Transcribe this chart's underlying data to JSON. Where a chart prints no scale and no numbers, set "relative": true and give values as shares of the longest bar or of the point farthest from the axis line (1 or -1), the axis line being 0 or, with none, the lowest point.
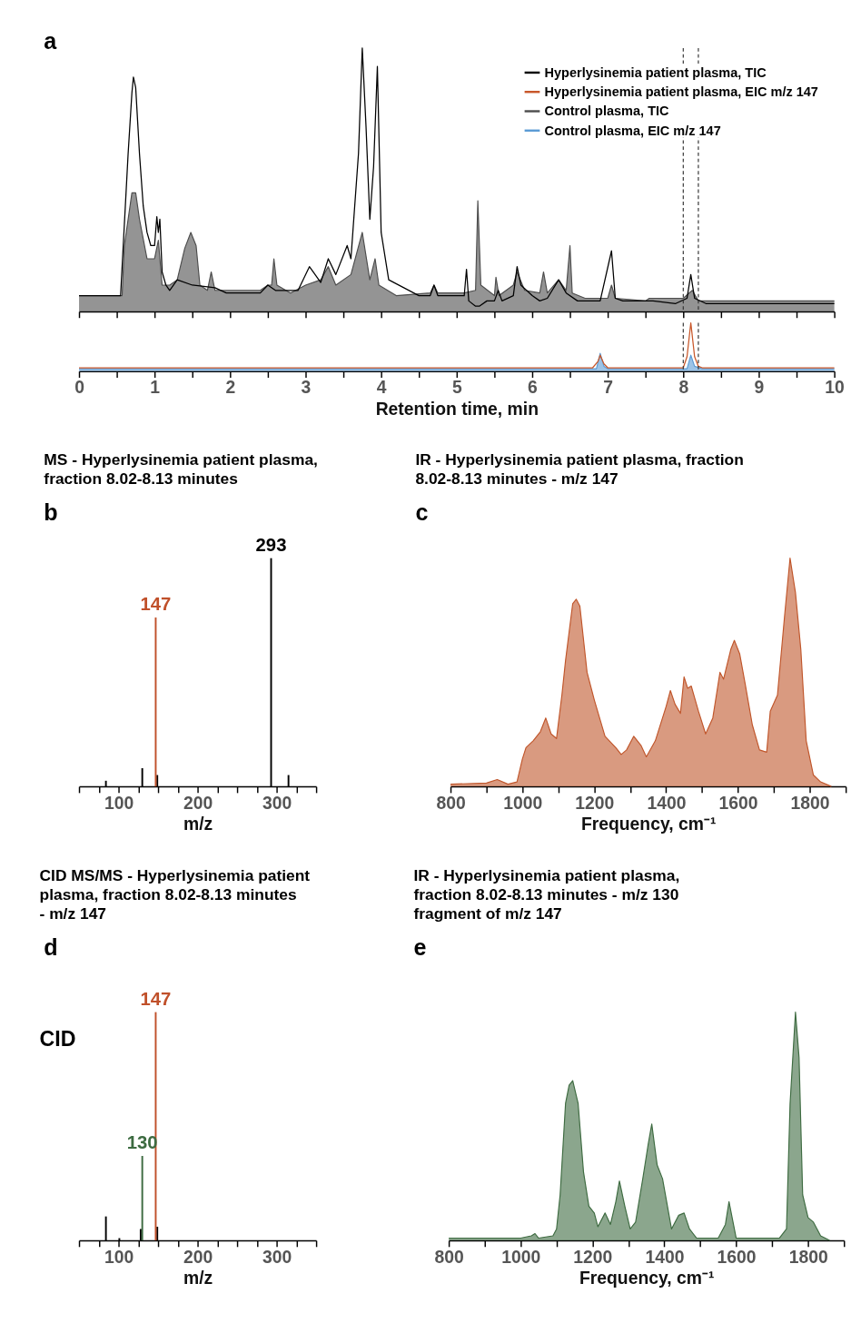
{
  "chart_data": [
    {
      "type": "line",
      "relative": true,
      "xlim": [
        0,
        10
      ],
      "xticks": [
        0,
        {
          "value": 0.5,
          "label": null
        },
        1,
        {
          "value": 1.5,
          "label": null
        },
        2,
        {
          "value": 2.5,
          "label": null
        },
        3,
        {
          "value": 3.5,
          "label": null
        },
        4,
        {
          "value": 4.5,
          "label": null
        },
        5,
        {
          "value": 5.5,
          "label": null
        },
        6,
        {
          "value": 6.5,
          "label": null
        },
        7,
        {
          "value": 7.5,
          "label": null
        },
        8,
        {
          "value": 8.5,
          "label": null
        },
        9,
        {
          "value": 9.5,
          "label": null
        },
        10
      ],
      "tick_labels": false,
      "legend": "top right",
      "annotations": [
        "a"
      ],
      "ref_lines": [
        {
          "axis": "x",
          "value": 8.0,
          "line_style": "dashed",
          "color": "#333333"
        },
        {
          "axis": "x",
          "value": 8.2,
          "line_style": "dashed",
          "color": "#333333"
        }
      ],
      "series": [
        {
          "name": "Hyperlysinemia patient plasma, TIC",
          "color": "#000000",
          "x": [
            0,
            0.55,
            0.6,
            0.65,
            0.7,
            0.72,
            0.75,
            0.8,
            0.85,
            0.9,
            0.95,
            1.0,
            1.03,
            1.05,
            1.07,
            1.1,
            1.15,
            1.2,
            1.3,
            1.5,
            1.8,
            1.95,
            2.4,
            2.5,
            2.6,
            2.9,
            3.05,
            3.1,
            3.2,
            3.3,
            3.4,
            3.55,
            3.6,
            3.7,
            3.75,
            3.8,
            3.85,
            3.9,
            3.95,
            4.0,
            4.1,
            4.3,
            4.5,
            4.65,
            4.7,
            4.75,
            5.0,
            5.1,
            5.13,
            5.16,
            5.25,
            5.3,
            5.4,
            5.5,
            5.55,
            5.6,
            5.75,
            5.8,
            5.85,
            6.0,
            6.1,
            6.2,
            6.35,
            6.45,
            6.6,
            6.8,
            6.9,
            7.05,
            7.1,
            7.2,
            7.6,
            7.9,
            8.05,
            8.1,
            8.15,
            8.3,
            9.0,
            10.0
          ],
          "values": [
            0.06,
            0.06,
            0.33,
            0.6,
            0.83,
            0.89,
            0.85,
            0.6,
            0.4,
            0.3,
            0.25,
            0.25,
            0.36,
            0.3,
            0.35,
            0.15,
            0.1,
            0.08,
            0.12,
            0.1,
            0.09,
            0.07,
            0.07,
            0.1,
            0.08,
            0.08,
            0.17,
            0.15,
            0.11,
            0.2,
            0.14,
            0.25,
            0.2,
            0.6,
            1.0,
            0.7,
            0.35,
            0.55,
            0.93,
            0.3,
            0.12,
            0.09,
            0.06,
            0.06,
            0.1,
            0.06,
            0.06,
            0.06,
            0.16,
            0.04,
            0.02,
            0.02,
            0.04,
            0.04,
            0.08,
            0.04,
            0.06,
            0.17,
            0.1,
            0.06,
            0.04,
            0.05,
            0.12,
            0.07,
            0.04,
            0.04,
            0.04,
            0.23,
            0.05,
            0.04,
            0.04,
            0.03,
            0.05,
            0.14,
            0.05,
            0.03,
            0.03,
            0.03
          ]
        },
        {
          "name": "Control plasma, TIC",
          "color": "#4d4d4d",
          "type": "area",
          "x": [
            0,
            0.57,
            0.6,
            0.7,
            0.75,
            0.8,
            0.9,
            1.0,
            1.05,
            1.1,
            1.2,
            1.3,
            1.4,
            1.48,
            1.55,
            1.6,
            1.7,
            1.75,
            1.8,
            2.0,
            2.4,
            2.5,
            2.55,
            2.58,
            2.62,
            2.8,
            3.0,
            3.2,
            3.3,
            3.4,
            3.6,
            3.75,
            3.85,
            3.92,
            3.97,
            4.2,
            4.65,
            4.7,
            4.75,
            5.1,
            5.25,
            5.28,
            5.32,
            5.5,
            5.52,
            5.56,
            5.75,
            5.8,
            5.9,
            6.1,
            6.15,
            6.2,
            6.35,
            6.45,
            6.5,
            6.53,
            6.7,
            7.0,
            7.05,
            7.1,
            7.5,
            7.55,
            8.0,
            8.12,
            8.2,
            9.0,
            10.0
          ],
          "values": [
            0.06,
            0.06,
            0.25,
            0.45,
            0.45,
            0.35,
            0.2,
            0.2,
            0.27,
            0.1,
            0.1,
            0.12,
            0.24,
            0.3,
            0.25,
            0.1,
            0.08,
            0.15,
            0.08,
            0.08,
            0.08,
            0.1,
            0.1,
            0.2,
            0.1,
            0.07,
            0.1,
            0.12,
            0.17,
            0.1,
            0.14,
            0.3,
            0.12,
            0.2,
            0.1,
            0.06,
            0.07,
            0.1,
            0.07,
            0.07,
            0.08,
            0.42,
            0.1,
            0.06,
            0.13,
            0.06,
            0.1,
            0.15,
            0.08,
            0.07,
            0.15,
            0.07,
            0.12,
            0.08,
            0.25,
            0.07,
            0.05,
            0.05,
            0.1,
            0.05,
            0.04,
            0.05,
            0.05,
            0.08,
            0.04,
            0.04,
            0.04
          ]
        }
      ]
    },
    {
      "type": "line",
      "relative": true,
      "xlim": [
        0,
        10
      ],
      "xticks": [
        0,
        {
          "value": 0.5,
          "label": null
        },
        1,
        {
          "value": 1.5,
          "label": null
        },
        2,
        {
          "value": 2.5,
          "label": null
        },
        3,
        {
          "value": 3.5,
          "label": null
        },
        4,
        {
          "value": 4.5,
          "label": null
        },
        5,
        {
          "value": 5.5,
          "label": null
        },
        6,
        {
          "value": 6.5,
          "label": null
        },
        7,
        {
          "value": 7.5,
          "label": null
        },
        8,
        {
          "value": 8.5,
          "label": null
        },
        9,
        {
          "value": 9.5,
          "label": null
        },
        10
      ],
      "xlabel": "Retention time, min",
      "legend": "top right",
      "ref_lines": [
        {
          "axis": "x",
          "value": 8.0,
          "line_style": "dashed",
          "color": "#333333"
        },
        {
          "axis": "x",
          "value": 8.2,
          "line_style": "dashed",
          "color": "#333333"
        }
      ],
      "series": [
        {
          "name": "Hyperlysinemia patient plasma, EIC m/z 147",
          "color": "#c8572a",
          "x": [
            0,
            6.8,
            6.87,
            6.9,
            6.95,
            7.0,
            8.0,
            8.05,
            8.1,
            8.15,
            8.2,
            8.25,
            10
          ],
          "values": [
            0.07,
            0.07,
            0.2,
            0.33,
            0.15,
            0.07,
            0.07,
            0.3,
            1.0,
            0.3,
            0.1,
            0.07,
            0.07
          ]
        },
        {
          "name": "Control plasma, EIC m/z 147",
          "color": "#5b9bd5",
          "type": "area",
          "x": [
            0,
            6.85,
            6.9,
            6.95,
            7.0,
            8.05,
            8.1,
            8.15,
            8.25,
            10
          ],
          "values": [
            0.05,
            0.05,
            0.37,
            0.1,
            0.05,
            0.05,
            0.33,
            0.1,
            0.05,
            0.05
          ]
        }
      ]
    },
    {
      "type": "bar",
      "relative": true,
      "title": "MS - Hyperlysinemia patient plasma, fraction 8.02-8.13 minutes",
      "xlabel": "m/z",
      "xlim": [
        50,
        350
      ],
      "xticks": [
        {
          "value": 50,
          "label": null
        },
        {
          "value": 75,
          "label": null
        },
        100,
        {
          "value": 125,
          "label": null
        },
        {
          "value": 150,
          "label": null
        },
        {
          "value": 175,
          "label": null
        },
        200,
        {
          "value": 225,
          "label": null
        },
        {
          "value": 250,
          "label": null
        },
        {
          "value": 275,
          "label": null
        },
        300,
        {
          "value": 325,
          "label": null
        },
        {
          "value": 350,
          "label": null
        }
      ],
      "annotations": [
        "b",
        {
          "text": "293",
          "x": 293,
          "y": 1.0
        },
        {
          "text": "147",
          "x": 147,
          "y": 0.74
        }
      ],
      "series": [
        {
          "color": "#000000",
          "x": [
            84,
            130,
            149,
            293,
            315
          ],
          "values": [
            0.025,
            0.08,
            0.05,
            1.0,
            0.05
          ]
        },
        {
          "color": "#c0502a",
          "x": [
            147
          ],
          "values": [
            0.74
          ]
        }
      ]
    },
    {
      "type": "area",
      "relative": true,
      "title": "IR - Hyperlysinemia patient plasma, fraction 8.02-8.13 minutes - m/z 147",
      "xlabel": "Frequency, cm⁻¹",
      "xlim": [
        800,
        1900
      ],
      "xticks": [
        800,
        {
          "value": 900,
          "label": null
        },
        1000,
        {
          "value": 1100,
          "label": null
        },
        1200,
        {
          "value": 1300,
          "label": null
        },
        1400,
        {
          "value": 1500,
          "label": null
        },
        1600,
        {
          "value": 1700,
          "label": null
        },
        1800,
        {
          "value": 1900,
          "label": null
        }
      ],
      "annotations": [
        "c"
      ],
      "series": [
        {
          "color": "#c0562b",
          "x": [
            800,
            900,
            930,
            960,
            985,
            1000,
            1010,
            1030,
            1050,
            1065,
            1080,
            1095,
            1110,
            1120,
            1140,
            1150,
            1160,
            1180,
            1200,
            1230,
            1260,
            1275,
            1290,
            1310,
            1330,
            1345,
            1370,
            1400,
            1412,
            1425,
            1440,
            1450,
            1460,
            1470,
            1490,
            1510,
            1530,
            1550,
            1560,
            1580,
            1590,
            1605,
            1620,
            1640,
            1660,
            1680,
            1690,
            1710,
            1730,
            1745,
            1760,
            1775,
            1790,
            1810,
            1830,
            1860
          ],
          "values": [
            0.01,
            0.015,
            0.03,
            0.01,
            0.02,
            0.12,
            0.17,
            0.2,
            0.24,
            0.3,
            0.23,
            0.21,
            0.4,
            0.55,
            0.8,
            0.82,
            0.79,
            0.5,
            0.38,
            0.22,
            0.17,
            0.14,
            0.16,
            0.22,
            0.18,
            0.13,
            0.2,
            0.35,
            0.42,
            0.36,
            0.32,
            0.48,
            0.43,
            0.44,
            0.33,
            0.23,
            0.3,
            0.5,
            0.47,
            0.6,
            0.64,
            0.58,
            0.45,
            0.27,
            0.16,
            0.15,
            0.33,
            0.4,
            0.75,
            1.0,
            0.85,
            0.6,
            0.2,
            0.05,
            0.02,
            0.0
          ]
        }
      ]
    },
    {
      "type": "bar",
      "relative": true,
      "title": "CID MS/MS - Hyperlysinemia patient plasma, fraction 8.02-8.13 minutes - m/z 147",
      "xlabel": "m/z",
      "xlim": [
        50,
        350
      ],
      "xticks": [
        {
          "value": 50,
          "label": null
        },
        {
          "value": 75,
          "label": null
        },
        100,
        {
          "value": 125,
          "label": null
        },
        {
          "value": 150,
          "label": null
        },
        {
          "value": 175,
          "label": null
        },
        200,
        {
          "value": 225,
          "label": null
        },
        {
          "value": 250,
          "label": null
        },
        {
          "value": 275,
          "label": null
        },
        300,
        {
          "value": 325,
          "label": null
        },
        {
          "value": 350,
          "label": null
        }
      ],
      "annotations": [
        "d",
        "CID",
        {
          "text": "147",
          "x": 147,
          "y": 1.0
        },
        {
          "text": "130",
          "x": 130,
          "y": 0.37
        }
      ],
      "series": [
        {
          "color": "#000000",
          "x": [
            84,
            101,
            128,
            149
          ],
          "values": [
            0.105,
            0.01,
            0.05,
            0.06
          ]
        },
        {
          "color": "#3d6b41",
          "x": [
            130
          ],
          "values": [
            0.37
          ]
        },
        {
          "color": "#c0502a",
          "x": [
            147
          ],
          "values": [
            1.0
          ]
        }
      ]
    },
    {
      "type": "area",
      "relative": true,
      "title": "IR - Hyperlysinemia patient plasma, fraction 8.02-8.13 minutes - m/z 130 fragment of m/z 147",
      "xlabel": "Frequency, cm⁻¹",
      "xlim": [
        800,
        1900
      ],
      "xticks": [
        800,
        {
          "value": 900,
          "label": null
        },
        1000,
        {
          "value": 1100,
          "label": null
        },
        1200,
        {
          "value": 1300,
          "label": null
        },
        1400,
        {
          "value": 1500,
          "label": null
        },
        1600,
        {
          "value": 1700,
          "label": null
        },
        1800,
        {
          "value": 1900,
          "label": null
        }
      ],
      "annotations": [
        "e"
      ],
      "series": [
        {
          "color": "#3e6b41",
          "x": [
            800,
            1000,
            1030,
            1040,
            1050,
            1090,
            1100,
            1110,
            1125,
            1135,
            1145,
            1160,
            1175,
            1190,
            1205,
            1215,
            1235,
            1250,
            1265,
            1275,
            1290,
            1305,
            1320,
            1340,
            1355,
            1365,
            1380,
            1395,
            1420,
            1440,
            1455,
            1470,
            1490,
            1550,
            1570,
            1580,
            1600,
            1720,
            1740,
            1750,
            1765,
            1775,
            1785,
            1800,
            1815,
            1835,
            1860
          ],
          "values": [
            0.01,
            0.01,
            0.02,
            0.03,
            0.01,
            0.02,
            0.05,
            0.2,
            0.6,
            0.68,
            0.7,
            0.6,
            0.3,
            0.15,
            0.12,
            0.06,
            0.12,
            0.07,
            0.17,
            0.26,
            0.15,
            0.05,
            0.08,
            0.27,
            0.42,
            0.51,
            0.33,
            0.27,
            0.05,
            0.11,
            0.12,
            0.05,
            0.01,
            0.01,
            0.07,
            0.17,
            0.01,
            0.01,
            0.05,
            0.6,
            1.0,
            0.8,
            0.2,
            0.1,
            0.08,
            0.02,
            0.0
          ]
        }
      ]
    }
  ]
}
